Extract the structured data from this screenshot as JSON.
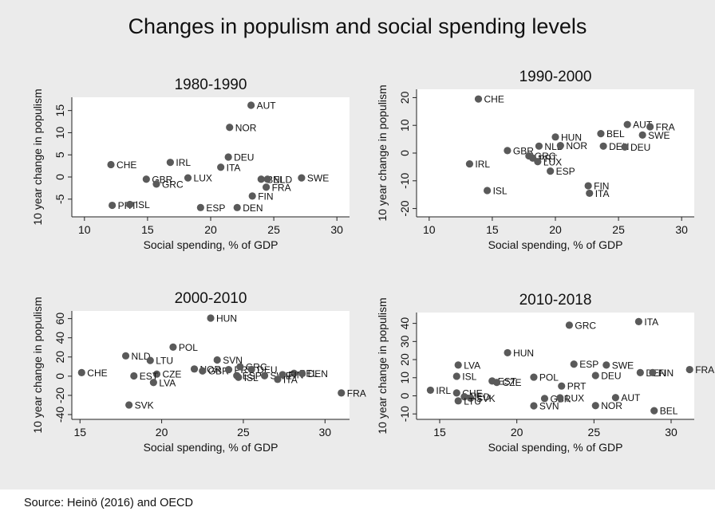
{
  "title": "Changes in populism and social spending levels",
  "source": "Source: Heinö (2016) and OECD",
  "colors": {
    "background": "#ebebeb",
    "plot": "#ffffff",
    "marker": "#5a5a5a"
  },
  "chart_data": [
    {
      "type": "scatter",
      "title": "1980-1990",
      "xlabel": "Social spending, % of GDP",
      "ylabel": "10 year change in populism",
      "xlim": [
        9,
        31
      ],
      "ylim": [
        -9,
        18
      ],
      "xticks": [
        10,
        15,
        20,
        25,
        30
      ],
      "yticks": [
        -5,
        0,
        5,
        10,
        15
      ],
      "points": [
        {
          "label": "AUT",
          "x": 23.2,
          "y": 16.2
        },
        {
          "label": "NOR",
          "x": 21.5,
          "y": 11.2
        },
        {
          "label": "DEU",
          "x": 21.4,
          "y": 4.5
        },
        {
          "label": "IRL",
          "x": 16.8,
          "y": 3.3
        },
        {
          "label": "CHE",
          "x": 12.1,
          "y": 2.8
        },
        {
          "label": "ITA",
          "x": 20.8,
          "y": 2.2
        },
        {
          "label": "LUX",
          "x": 18.2,
          "y": -0.2
        },
        {
          "label": "GBR",
          "x": 14.9,
          "y": -0.5
        },
        {
          "label": "GRC",
          "x": 15.7,
          "y": -1.6
        },
        {
          "label": "BEL",
          "x": 24.0,
          "y": -0.5
        },
        {
          "label": "NLD",
          "x": 24.5,
          "y": -0.5
        },
        {
          "label": "SWE",
          "x": 27.2,
          "y": -0.2
        },
        {
          "label": "FRA",
          "x": 24.4,
          "y": -2.3
        },
        {
          "label": "FIN",
          "x": 23.3,
          "y": -4.3
        },
        {
          "label": "PRT",
          "x": 12.2,
          "y": -6.4
        },
        {
          "label": "ISL",
          "x": 13.6,
          "y": -6.2
        },
        {
          "label": "ESP",
          "x": 19.2,
          "y": -6.9
        },
        {
          "label": "DEN",
          "x": 22.1,
          "y": -6.9
        }
      ]
    },
    {
      "type": "scatter",
      "title": "1990-2000",
      "xlabel": "Social spending, % of GDP",
      "ylabel": "10 year change in populism",
      "xlim": [
        9,
        31
      ],
      "ylim": [
        -23,
        23
      ],
      "xticks": [
        10,
        15,
        20,
        25,
        30
      ],
      "yticks": [
        -20,
        -10,
        0,
        10,
        20
      ],
      "points": [
        {
          "label": "CHE",
          "x": 13.9,
          "y": 19.5
        },
        {
          "label": "AUT",
          "x": 25.7,
          "y": 10.3
        },
        {
          "label": "FRA",
          "x": 27.5,
          "y": 9.5
        },
        {
          "label": "BEL",
          "x": 23.6,
          "y": 7.0
        },
        {
          "label": "SWE",
          "x": 26.9,
          "y": 6.5
        },
        {
          "label": "HUN",
          "x": 20.0,
          "y": 5.8
        },
        {
          "label": "DEN",
          "x": 23.8,
          "y": 2.5
        },
        {
          "label": "DEU",
          "x": 25.5,
          "y": 2.2
        },
        {
          "label": "NLD",
          "x": 18.7,
          "y": 2.5
        },
        {
          "label": "NOR",
          "x": 20.4,
          "y": 2.7
        },
        {
          "label": "GBR",
          "x": 16.2,
          "y": 0.9
        },
        {
          "label": "GRC",
          "x": 17.9,
          "y": -1.0
        },
        {
          "label": "PRT",
          "x": 18.2,
          "y": -1.8
        },
        {
          "label": "LUX",
          "x": 18.6,
          "y": -3.1
        },
        {
          "label": "IRL",
          "x": 13.2,
          "y": -3.9
        },
        {
          "label": "ESP",
          "x": 19.6,
          "y": -6.5
        },
        {
          "label": "FIN",
          "x": 22.6,
          "y": -11.8
        },
        {
          "label": "ISL",
          "x": 14.6,
          "y": -13.5
        },
        {
          "label": "ITA",
          "x": 22.7,
          "y": -14.5
        }
      ]
    },
    {
      "type": "scatter",
      "title": "2000-2010",
      "xlabel": "Social spending, % of GDP",
      "ylabel": "10 year change in populism",
      "xlim": [
        14.5,
        31.5
      ],
      "ylim": [
        -45,
        68
      ],
      "xticks": [
        15,
        20,
        25,
        30
      ],
      "yticks": [
        -40,
        -20,
        0,
        20,
        40,
        60
      ],
      "points": [
        {
          "label": "HUN",
          "x": 23.0,
          "y": 60.5
        },
        {
          "label": "POL",
          "x": 20.7,
          "y": 30.3
        },
        {
          "label": "NLD",
          "x": 17.8,
          "y": 21.2
        },
        {
          "label": "LTU",
          "x": 19.3,
          "y": 16.4
        },
        {
          "label": "SVN",
          "x": 23.4,
          "y": 16.9
        },
        {
          "label": "NOR",
          "x": 22.0,
          "y": 7.5
        },
        {
          "label": "GBR",
          "x": 22.5,
          "y": 5.5
        },
        {
          "label": "BEL",
          "x": 28.1,
          "y": 3.0
        },
        {
          "label": "PRT",
          "x": 24.1,
          "y": 6.8
        },
        {
          "label": "GRC",
          "x": 24.8,
          "y": 9.8
        },
        {
          "label": "DEU",
          "x": 25.5,
          "y": 7.0
        },
        {
          "label": "CHE",
          "x": 15.1,
          "y": 3.7
        },
        {
          "label": "CZE",
          "x": 19.7,
          "y": 2.2
        },
        {
          "label": "EST",
          "x": 18.3,
          "y": 0.3
        },
        {
          "label": "ESP",
          "x": 24.6,
          "y": 0.6
        },
        {
          "label": "ISL",
          "x": 24.7,
          "y": -1.2
        },
        {
          "label": "SWE",
          "x": 26.3,
          "y": 0.5
        },
        {
          "label": "FIN",
          "x": 27.4,
          "y": 1.5
        },
        {
          "label": "DEN",
          "x": 28.6,
          "y": 2.8
        },
        {
          "label": "ITA",
          "x": 27.1,
          "y": -3.3
        },
        {
          "label": "LVA",
          "x": 19.5,
          "y": -6.6
        },
        {
          "label": "SVK",
          "x": 18.0,
          "y": -30.0
        },
        {
          "label": "FRA",
          "x": 31.0,
          "y": -17.5
        }
      ]
    },
    {
      "type": "scatter",
      "title": "2010-2018",
      "xlabel": "Social spending, % of GDP",
      "ylabel": "10 year change in populism",
      "xlim": [
        13.5,
        31.5
      ],
      "ylim": [
        -13,
        46
      ],
      "xticks": [
        15,
        20,
        25,
        30
      ],
      "yticks": [
        -10,
        0,
        10,
        20,
        30,
        40
      ],
      "points": [
        {
          "label": "ITA",
          "x": 27.9,
          "y": 41.0
        },
        {
          "label": "GRC",
          "x": 23.4,
          "y": 39.0
        },
        {
          "label": "HUN",
          "x": 19.4,
          "y": 23.8
        },
        {
          "label": "LVA",
          "x": 16.2,
          "y": 17.0
        },
        {
          "label": "ESP",
          "x": 23.7,
          "y": 17.5
        },
        {
          "label": "SWE",
          "x": 25.8,
          "y": 17.0
        },
        {
          "label": "FRA",
          "x": 31.2,
          "y": 14.5
        },
        {
          "label": "DEN",
          "x": 28.0,
          "y": 12.8
        },
        {
          "label": "FIN",
          "x": 28.8,
          "y": 12.8
        },
        {
          "label": "DEU",
          "x": 25.1,
          "y": 11.2
        },
        {
          "label": "ISL",
          "x": 16.1,
          "y": 10.8
        },
        {
          "label": "POL",
          "x": 21.1,
          "y": 10.3
        },
        {
          "label": "EST",
          "x": 18.4,
          "y": 8.2
        },
        {
          "label": "CZE",
          "x": 18.7,
          "y": 7.4
        },
        {
          "label": "PRT",
          "x": 22.9,
          "y": 5.4
        },
        {
          "label": "IRL",
          "x": 14.4,
          "y": 3.1
        },
        {
          "label": "CHE",
          "x": 16.1,
          "y": 1.6
        },
        {
          "label": "NED",
          "x": 16.6,
          "y": -0.5
        },
        {
          "label": "SVK",
          "x": 17.0,
          "y": -1.3
        },
        {
          "label": "LTU",
          "x": 16.2,
          "y": -2.8
        },
        {
          "label": "GBR",
          "x": 21.8,
          "y": -1.5
        },
        {
          "label": "LUX",
          "x": 22.8,
          "y": -1.1
        },
        {
          "label": "AUT",
          "x": 26.4,
          "y": -1.0
        },
        {
          "label": "SVN",
          "x": 21.1,
          "y": -5.5
        },
        {
          "label": "NOR",
          "x": 25.1,
          "y": -5.4
        },
        {
          "label": "BEL",
          "x": 28.9,
          "y": -8.2
        }
      ]
    }
  ]
}
